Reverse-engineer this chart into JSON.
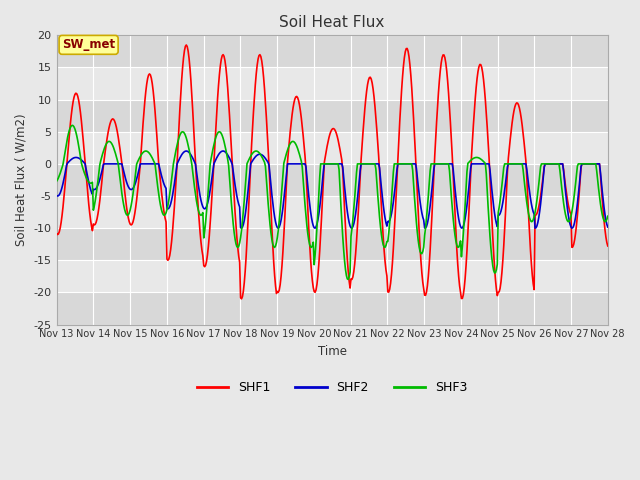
{
  "title": "Soil Heat Flux",
  "ylabel": "Soil Heat Flux ( W/m2)",
  "xlabel": "Time",
  "ylim": [
    -25,
    20
  ],
  "background_color": "#e8e8e8",
  "plot_bg_color": "#e8e8e8",
  "line_colors": {
    "SHF1": "#ff0000",
    "SHF2": "#0000cc",
    "SHF3": "#00bb00"
  },
  "annotation_text": "SW_met",
  "annotation_bg": "#ffff99",
  "annotation_border": "#ccaa00",
  "annotation_text_color": "#880000",
  "x_tick_labels": [
    "Nov 13",
    "Nov 14",
    "Nov 15",
    "Nov 16",
    "Nov 17",
    "Nov 18",
    "Nov 19",
    "Nov 20",
    "Nov 21",
    "Nov 22",
    "Nov 23",
    "Nov 24",
    "Nov 25",
    "Nov 26",
    "Nov 27",
    "Nov 28"
  ],
  "yticks": [
    -25,
    -20,
    -15,
    -10,
    -5,
    0,
    5,
    10,
    15,
    20
  ],
  "n_points": 600,
  "legend_labels": [
    "SHF1",
    "SHF2",
    "SHF3"
  ],
  "figsize": [
    6.4,
    4.8
  ],
  "dpi": 100
}
